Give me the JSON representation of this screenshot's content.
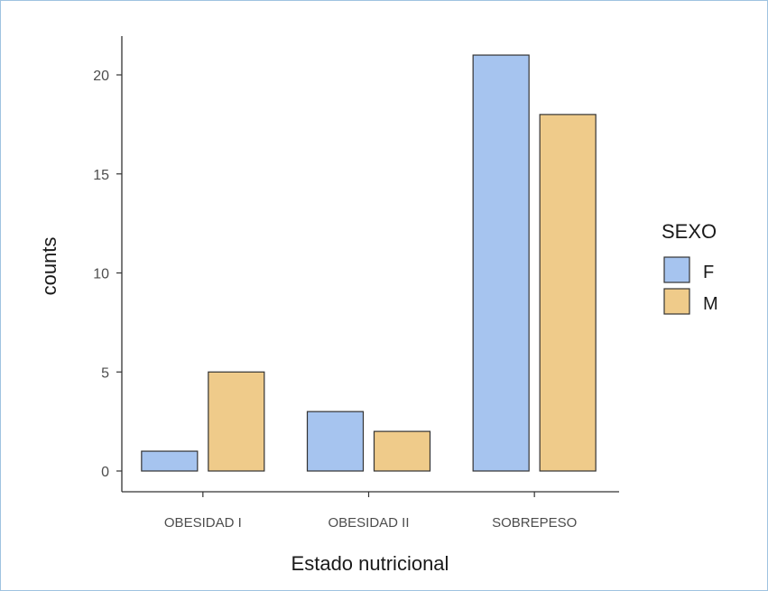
{
  "chart_data": {
    "type": "bar",
    "categories": [
      "OBESIDAD I",
      "OBESIDAD II",
      "SOBREPESO"
    ],
    "series": [
      {
        "name": "F",
        "values": [
          1,
          3,
          21
        ],
        "color": "#a6c4ef"
      },
      {
        "name": "M",
        "values": [
          5,
          2,
          18
        ],
        "color": "#efcb8a"
      }
    ],
    "xlabel": "Estado nutricional",
    "ylabel": "counts",
    "ylim": [
      0,
      22
    ],
    "yticks": [
      0,
      5,
      10,
      15,
      20
    ],
    "legend": {
      "title": "SEXO",
      "position": "right"
    },
    "grid": false
  },
  "colors": {
    "bar_stroke": "#333333",
    "axis": "#333333",
    "frame_border": "#9fc3e0"
  }
}
